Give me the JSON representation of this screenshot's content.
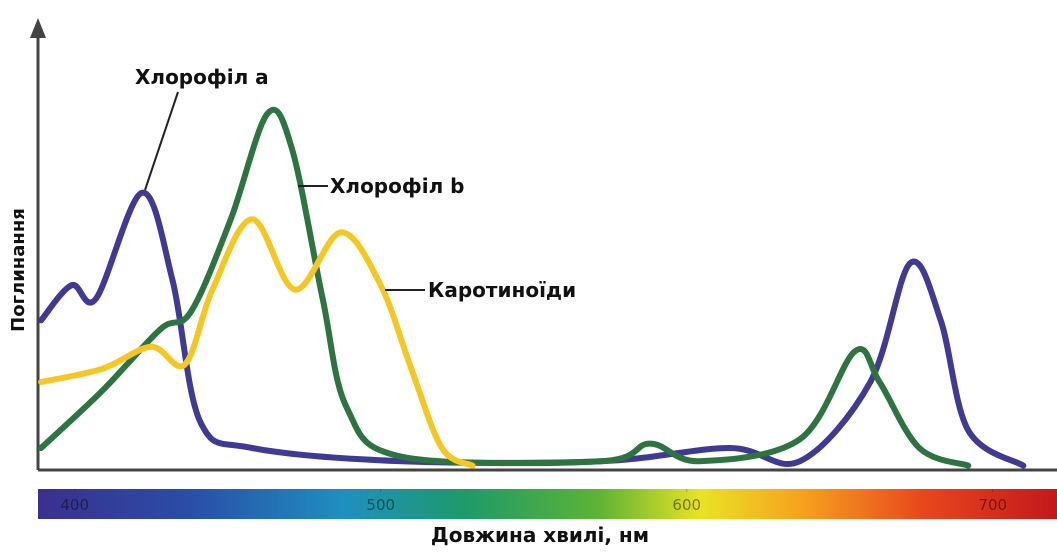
{
  "chart_data": {
    "type": "line",
    "y_label": "Поглинання",
    "x_label": "Довжина хвилі, нм",
    "xlim": [
      388,
      721
    ],
    "xticks": [
      400,
      500,
      600,
      700
    ],
    "ylim": [
      0,
      100
    ],
    "series": [
      {
        "name": "Хлорофіл a",
        "color": "#3f3a94",
        "x": [
          389,
          399,
          407,
          422,
          432,
          441,
          458,
          507,
          572,
          614,
          637,
          660,
          673,
          683,
          692,
          710
        ],
        "values": [
          34,
          42,
          39,
          63,
          43,
          11,
          5,
          2,
          2,
          5,
          2,
          20,
          47,
          34,
          9,
          1
        ]
      },
      {
        "name": "Хлорофіл b",
        "color": "#2e7440",
        "x": [
          389,
          409,
          428,
          438,
          451,
          463,
          471,
          481,
          489,
          507,
          572,
          588,
          604,
          637,
          655,
          663,
          676,
          692
        ],
        "values": [
          5,
          18,
          32,
          36,
          57,
          81,
          73,
          39,
          14,
          3,
          2,
          6,
          2,
          7,
          27,
          20,
          5,
          1
        ]
      },
      {
        "name": "Каротиноїди",
        "color": "#f5c724",
        "x": [
          389,
          409,
          425,
          436,
          445,
          458,
          472,
          487,
          500,
          510,
          520,
          530
        ],
        "values": [
          20,
          23,
          28,
          24,
          41,
          57,
          41,
          54,
          42,
          23,
          5,
          1
        ]
      }
    ]
  }
}
